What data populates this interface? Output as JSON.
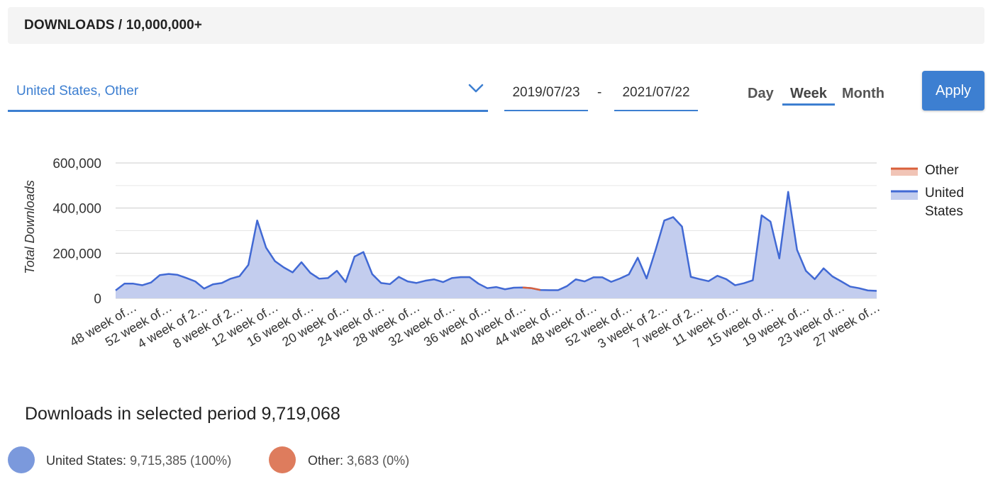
{
  "header": {
    "title": "DOWNLOADS / 10,000,000+"
  },
  "filters": {
    "countries_value": "United States,  Other",
    "date_start": "2019/07/23",
    "date_separator": "-",
    "date_end": "2021/07/22",
    "granularity": {
      "day": "Day",
      "week": "Week",
      "month": "Month",
      "selected": "Week"
    },
    "apply_label": "Apply"
  },
  "chart_data": {
    "type": "area",
    "ylabel": "Total Downloads",
    "xlabel": "",
    "ylim": [
      0,
      600000
    ],
    "yticks": [
      "0",
      "200,000",
      "400,000",
      "600,000"
    ],
    "ytick_values": [
      0,
      200000,
      400000,
      600000
    ],
    "x_tick_labels": [
      "48 week of…",
      "52 week of…",
      "4 week of 2…",
      "8 week of 2…",
      "12 week of…",
      "16 week of…",
      "20 week of…",
      "24 week of…",
      "28 week of…",
      "32 week of…",
      "36 week of…",
      "40 week of…",
      "44 week of…",
      "48 week of…",
      "52 week of…",
      "3 week of 2…",
      "7 week of 2…",
      "11 week of…",
      "15 week of…",
      "19 week of…",
      "23 week of…",
      "27 week of…"
    ],
    "legend": [
      {
        "name": "Other",
        "color": "#d9603b"
      },
      {
        "name": "United States",
        "color": "#4169d4"
      }
    ],
    "series": [
      {
        "name": "United States",
        "color": "#4169d4",
        "fill": "#c3cdee",
        "values": [
          35000,
          65000,
          65000,
          58000,
          70000,
          103000,
          108000,
          104000,
          90000,
          75000,
          43000,
          62000,
          68000,
          87000,
          98000,
          148000,
          345000,
          225000,
          165000,
          137000,
          115000,
          160000,
          113000,
          87000,
          90000,
          122000,
          72000,
          185000,
          205000,
          107000,
          68000,
          63000,
          95000,
          75000,
          68000,
          78000,
          84000,
          72000,
          90000,
          94000,
          94000,
          65000,
          45000,
          50000,
          40000,
          47000,
          48000,
          45000,
          37000,
          36000,
          36000,
          54000,
          84000,
          75000,
          93000,
          93000,
          73000,
          88000,
          106000,
          180000,
          88000,
          212000,
          345000,
          360000,
          318000,
          95000,
          85000,
          76000,
          100000,
          85000,
          58000,
          67000,
          80000,
          368000,
          340000,
          177000,
          472000,
          215000,
          122000,
          85000,
          133000,
          97000,
          75000,
          52000,
          45000,
          35000,
          33000
        ]
      },
      {
        "name": "Other",
        "color": "#d9603b",
        "note_index_range": [
          46,
          48
        ],
        "values": [
          0,
          0,
          0,
          0,
          0,
          0,
          0,
          0,
          0,
          0,
          0,
          0,
          0,
          0,
          0,
          0,
          0,
          0,
          0,
          0,
          0,
          0,
          0,
          0,
          0,
          0,
          0,
          0,
          0,
          0,
          0,
          0,
          0,
          0,
          0,
          0,
          0,
          0,
          0,
          0,
          0,
          0,
          0,
          0,
          0,
          0,
          1200,
          1800,
          600,
          0,
          0,
          0,
          0,
          0,
          0,
          0,
          0,
          0,
          0,
          0,
          0,
          0,
          0,
          0,
          0,
          0,
          0,
          0,
          0,
          0,
          0,
          0,
          0,
          0,
          0,
          0,
          0,
          0,
          0,
          0,
          0,
          0,
          0,
          0,
          0,
          0,
          0
        ]
      }
    ]
  },
  "summary": {
    "text": "Downloads in selected period 9,719,068",
    "items": [
      {
        "label": "United States:",
        "value": "9,715,385 (100%)",
        "color": "#7b99dc"
      },
      {
        "label": "Other:",
        "value": "3,683 (0%)",
        "color": "#de7c5d"
      }
    ]
  }
}
